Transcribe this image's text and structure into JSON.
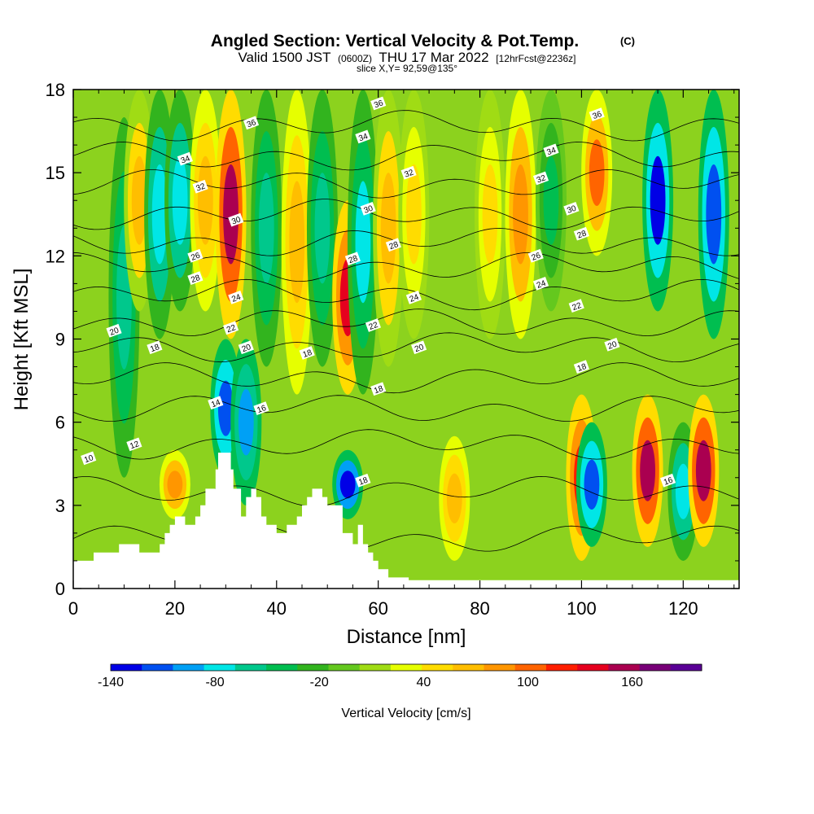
{
  "chart_data": {
    "type": "heatmap",
    "title": "Angled Section: Vertical Velocity & Pot.Temp.",
    "title_mark": "(C)",
    "subtitle_prefix": "Valid 1500 JST",
    "subtitle_small1": "(0600Z)",
    "subtitle_main": "THU 17 Mar 2022",
    "subtitle_small2": "[12hrFcst@2236z]",
    "slice_label": "slice X,Y= 92,59@135°",
    "xlabel": "Distance [nm]",
    "ylabel": "Height [Kft MSL]",
    "xlim": [
      0,
      131
    ],
    "ylim": [
      0,
      18
    ],
    "x_ticks": [
      0,
      20,
      40,
      60,
      80,
      100,
      120
    ],
    "y_ticks": [
      0,
      3,
      6,
      9,
      12,
      15,
      18
    ],
    "colorbar": {
      "label": "Vertical Velocity [cm/s]",
      "range": [
        -140,
        200
      ],
      "tick_values": [
        -140,
        -80,
        -20,
        40,
        100,
        160
      ],
      "tick_labels": [
        "-140",
        "-80",
        "-20",
        "40",
        "100",
        "160"
      ],
      "colors": [
        "#0000e6",
        "#0050f0",
        "#00a0f5",
        "#00e6e6",
        "#00c88c",
        "#00be50",
        "#32b41e",
        "#64c81e",
        "#a0dc14",
        "#e6ff00",
        "#ffdc00",
        "#ffbe00",
        "#ff9600",
        "#ff6400",
        "#ff1e00",
        "#e6001e",
        "#aa0050",
        "#780078",
        "#5a0096"
      ]
    },
    "vertical_velocity_cells": [
      {
        "x": 10,
        "ytop": 17,
        "ybot": 4,
        "value": -60
      },
      {
        "x": 13,
        "ytop": 18,
        "ybot": 10,
        "value": 60
      },
      {
        "x": 17,
        "ytop": 18,
        "ybot": 9,
        "value": -80
      },
      {
        "x": 20,
        "ytop": 5,
        "ybot": 2.5,
        "value": 90
      },
      {
        "x": 21,
        "ytop": 18,
        "ybot": 10,
        "value": -80
      },
      {
        "x": 26,
        "ytop": 18,
        "ybot": 10,
        "value": 70
      },
      {
        "x": 31,
        "ytop": 18,
        "ybot": 9,
        "value": 150
      },
      {
        "x": 30,
        "ytop": 9,
        "ybot": 4,
        "value": -110
      },
      {
        "x": 34,
        "ytop": 9,
        "ybot": 3,
        "value": -100
      },
      {
        "x": 38,
        "ytop": 18,
        "ybot": 8,
        "value": -60
      },
      {
        "x": 44,
        "ytop": 18,
        "ybot": 7,
        "value": 70
      },
      {
        "x": 49,
        "ytop": 18,
        "ybot": 8,
        "value": -60
      },
      {
        "x": 54,
        "ytop": 14,
        "ybot": 7,
        "value": 130
      },
      {
        "x": 54,
        "ytop": 5,
        "ybot": 2.5,
        "value": -140
      },
      {
        "x": 57,
        "ytop": 18,
        "ybot": 7,
        "value": -70
      },
      {
        "x": 62,
        "ytop": 18,
        "ybot": 8,
        "value": 60
      },
      {
        "x": 67,
        "ytop": 18,
        "ybot": 9,
        "value": 40
      },
      {
        "x": 75,
        "ytop": 5.5,
        "ybot": 1,
        "value": 70
      },
      {
        "x": 82,
        "ytop": 18,
        "ybot": 9,
        "value": 50
      },
      {
        "x": 88,
        "ytop": 18,
        "ybot": 9,
        "value": 90
      },
      {
        "x": 94,
        "ytop": 18,
        "ybot": 10,
        "value": -40
      },
      {
        "x": 100,
        "ytop": 7,
        "ybot": 1,
        "value": 120
      },
      {
        "x": 103,
        "ytop": 18,
        "ybot": 12,
        "value": 110
      },
      {
        "x": 102,
        "ytop": 6,
        "ybot": 1.5,
        "value": -120
      },
      {
        "x": 113,
        "ytop": 7,
        "ybot": 1.5,
        "value": 150
      },
      {
        "x": 115,
        "ytop": 18,
        "ybot": 10,
        "value": -130
      },
      {
        "x": 120,
        "ytop": 6,
        "ybot": 1,
        "value": -80
      },
      {
        "x": 124,
        "ytop": 7,
        "ybot": 1.5,
        "value": 160
      },
      {
        "x": 126,
        "ytop": 18,
        "ybot": 9,
        "value": -110
      }
    ],
    "terrain_profile": {
      "x": [
        0,
        4,
        4,
        9,
        9,
        13,
        13,
        17,
        17,
        18,
        18,
        19,
        19,
        20,
        20,
        22,
        22,
        24,
        24,
        25,
        25,
        26,
        26,
        28,
        28,
        28.5,
        28.5,
        31,
        31,
        31.5,
        31.5,
        33,
        33,
        34,
        34,
        35,
        35,
        36,
        36,
        37,
        37,
        38,
        38,
        40,
        40,
        42,
        42,
        44,
        44,
        45,
        45,
        46,
        46,
        47,
        47,
        48,
        48,
        49,
        49,
        50,
        50,
        53,
        53,
        55,
        55,
        56,
        56,
        57,
        57,
        58,
        58,
        59,
        59,
        60,
        60,
        62,
        62,
        64,
        64,
        66,
        66,
        67,
        67,
        68,
        68,
        71,
        71,
        131
      ],
      "y": [
        1.0,
        1.0,
        1.3,
        1.3,
        1.6,
        1.6,
        1.3,
        1.3,
        1.6,
        1.6,
        2.0,
        2.0,
        2.3,
        2.3,
        2.6,
        2.6,
        2.3,
        2.3,
        2.6,
        2.6,
        3.0,
        3.0,
        3.6,
        3.6,
        4.3,
        4.3,
        4.9,
        4.9,
        4.3,
        4.3,
        3.6,
        3.6,
        2.6,
        2.6,
        3.3,
        3.3,
        3.6,
        3.6,
        3.3,
        3.3,
        2.6,
        2.6,
        2.3,
        2.3,
        2.0,
        2.0,
        2.3,
        2.3,
        2.6,
        2.6,
        3.0,
        3.0,
        3.3,
        3.3,
        3.6,
        3.6,
        3.6,
        3.6,
        3.3,
        3.3,
        3.0,
        3.0,
        2.0,
        2.0,
        1.6,
        1.6,
        2.3,
        2.3,
        1.6,
        1.6,
        1.3,
        1.3,
        1.0,
        1.0,
        0.7,
        0.7,
        0.4,
        0.4,
        0.4,
        0.4,
        0.3,
        0.3,
        0.3,
        0.3,
        0.3,
        0.3,
        0.3,
        0.3,
        0.3,
        0.3
      ]
    },
    "pot_temp_contours": {
      "levels": [
        10,
        12,
        14,
        16,
        18,
        20,
        22,
        24,
        26,
        28,
        30,
        32,
        34,
        36
      ],
      "base_height": [
        1.8,
        3.5,
        5.2,
        6.5,
        7.6,
        8.7,
        9.6,
        10.6,
        11.6,
        12.5,
        13.5,
        14.6,
        15.6,
        16.7
      ]
    },
    "contour_labels": [
      {
        "text": "36",
        "x": 35,
        "y": 16.8
      },
      {
        "text": "34",
        "x": 22,
        "y": 15.5
      },
      {
        "text": "32",
        "x": 25,
        "y": 14.5
      },
      {
        "text": "30",
        "x": 32,
        "y": 13.3
      },
      {
        "text": "26",
        "x": 24,
        "y": 12.0
      },
      {
        "text": "28",
        "x": 24,
        "y": 11.2
      },
      {
        "text": "24",
        "x": 32,
        "y": 10.5
      },
      {
        "text": "20",
        "x": 8,
        "y": 9.3
      },
      {
        "text": "22",
        "x": 31,
        "y": 9.4
      },
      {
        "text": "18",
        "x": 16,
        "y": 8.7
      },
      {
        "text": "20",
        "x": 34,
        "y": 8.7
      },
      {
        "text": "14",
        "x": 28,
        "y": 6.7
      },
      {
        "text": "16",
        "x": 37,
        "y": 6.5
      },
      {
        "text": "12",
        "x": 12,
        "y": 5.2
      },
      {
        "text": "10",
        "x": 3,
        "y": 4.7
      },
      {
        "text": "36",
        "x": 60,
        "y": 17.5
      },
      {
        "text": "34",
        "x": 57,
        "y": 16.3
      },
      {
        "text": "32",
        "x": 66,
        "y": 15.0
      },
      {
        "text": "30",
        "x": 58,
        "y": 13.7
      },
      {
        "text": "28",
        "x": 63,
        "y": 12.4
      },
      {
        "text": "28",
        "x": 55,
        "y": 11.9
      },
      {
        "text": "24",
        "x": 67,
        "y": 10.5
      },
      {
        "text": "22",
        "x": 59,
        "y": 9.5
      },
      {
        "text": "20",
        "x": 68,
        "y": 8.7
      },
      {
        "text": "18",
        "x": 46,
        "y": 8.5
      },
      {
        "text": "18",
        "x": 60,
        "y": 7.2
      },
      {
        "text": "18",
        "x": 57,
        "y": 3.9
      },
      {
        "text": "36",
        "x": 103,
        "y": 17.1
      },
      {
        "text": "34",
        "x": 94,
        "y": 15.8
      },
      {
        "text": "32",
        "x": 92,
        "y": 14.8
      },
      {
        "text": "30",
        "x": 98,
        "y": 13.7
      },
      {
        "text": "28",
        "x": 100,
        "y": 12.8
      },
      {
        "text": "26",
        "x": 91,
        "y": 12.0
      },
      {
        "text": "24",
        "x": 92,
        "y": 11.0
      },
      {
        "text": "22",
        "x": 99,
        "y": 10.2
      },
      {
        "text": "20",
        "x": 106,
        "y": 8.8
      },
      {
        "text": "18",
        "x": 100,
        "y": 8.0
      },
      {
        "text": "16",
        "x": 117,
        "y": 3.9
      }
    ]
  }
}
